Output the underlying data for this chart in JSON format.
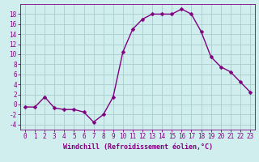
{
  "x": [
    0,
    1,
    2,
    3,
    4,
    5,
    6,
    7,
    8,
    9,
    10,
    11,
    12,
    13,
    14,
    15,
    16,
    17,
    18,
    19,
    20,
    21,
    22,
    23
  ],
  "y": [
    -0.5,
    -0.5,
    1.5,
    -0.7,
    -1.0,
    -1.0,
    -1.5,
    -3.5,
    -2.0,
    1.5,
    10.5,
    15.0,
    17.0,
    18.0,
    18.0,
    18.0,
    19.0,
    18.0,
    14.5,
    9.5,
    7.5,
    6.5,
    4.5,
    2.5
  ],
  "line_color": "#800080",
  "marker": "D",
  "markersize": 2.5,
  "linewidth": 1.0,
  "background_color": "#d0eeee",
  "grid_color": "#aacccc",
  "xlabel": "Windchill (Refroidissement éolien,°C)",
  "xlabel_color": "#800080",
  "tick_color": "#800080",
  "ylim": [
    -5,
    20
  ],
  "xlim": [
    -0.5,
    23.5
  ],
  "yticks": [
    -4,
    -2,
    0,
    2,
    4,
    6,
    8,
    10,
    12,
    14,
    16,
    18
  ],
  "xticks": [
    0,
    1,
    2,
    3,
    4,
    5,
    6,
    7,
    8,
    9,
    10,
    11,
    12,
    13,
    14,
    15,
    16,
    17,
    18,
    19,
    20,
    21,
    22,
    23
  ],
  "border_color": "#800080",
  "tick_fontsize": 5.5,
  "xlabel_fontsize": 6.0
}
